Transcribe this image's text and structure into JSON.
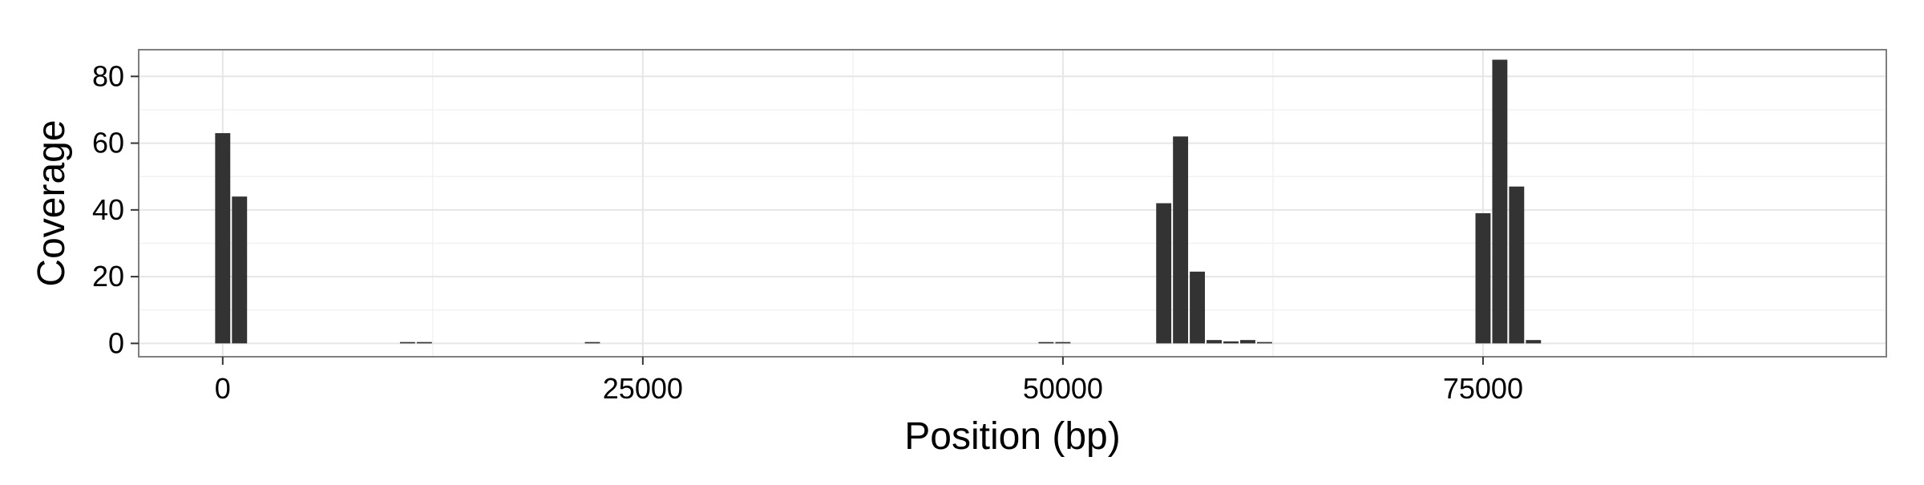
{
  "chart_data": {
    "type": "bar",
    "xlabel": "Position (bp)",
    "ylabel": "Coverage",
    "xlim": [
      -5000,
      99000
    ],
    "ylim": [
      -4,
      88
    ],
    "x_ticks": [
      0,
      25000,
      50000,
      75000
    ],
    "x_tick_labels": [
      "0",
      "25000",
      "50000",
      "75000"
    ],
    "y_ticks": [
      0,
      20,
      40,
      60,
      80
    ],
    "y_tick_labels": [
      "0",
      "20",
      "40",
      "60",
      "80"
    ],
    "grid": true,
    "bin_width": 1000,
    "x": [
      0,
      1000,
      11000,
      12000,
      22000,
      49000,
      50000,
      56000,
      57000,
      58000,
      59000,
      60000,
      61000,
      62000,
      75000,
      76000,
      77000,
      78000
    ],
    "values": [
      63,
      44,
      0.4,
      0.4,
      0.4,
      0.4,
      0.4,
      42,
      62,
      21.5,
      1,
      0.6,
      1,
      0.4,
      39,
      85,
      47,
      1
    ],
    "colors": {
      "bar": "#333333",
      "panel_background": "#ffffff",
      "panel_border": "#7f7f7f",
      "grid_major": "#e6e6e6",
      "grid_minor": "#f2f2f2",
      "tick": "#333333",
      "text": "#000000"
    }
  }
}
